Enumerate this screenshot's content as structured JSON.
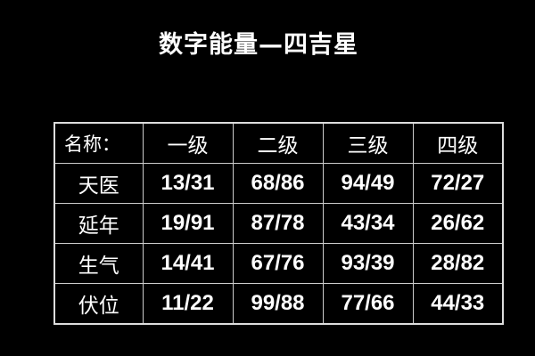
{
  "title": "数字能量—四吉星",
  "table": {
    "headers": [
      "名称：",
      "一级",
      "二级",
      "三级",
      "四级"
    ],
    "rows": [
      {
        "name": "天医",
        "values": [
          "13/31",
          "68/86",
          "94/49",
          "72/27"
        ]
      },
      {
        "name": "延年",
        "values": [
          "19/91",
          "87/78",
          "43/34",
          "26/62"
        ]
      },
      {
        "name": "生气",
        "values": [
          "14/41",
          "67/76",
          "93/39",
          "28/82"
        ]
      },
      {
        "name": "伏位",
        "values": [
          "11/22",
          "99/88",
          "77/66",
          "44/33"
        ]
      }
    ]
  }
}
